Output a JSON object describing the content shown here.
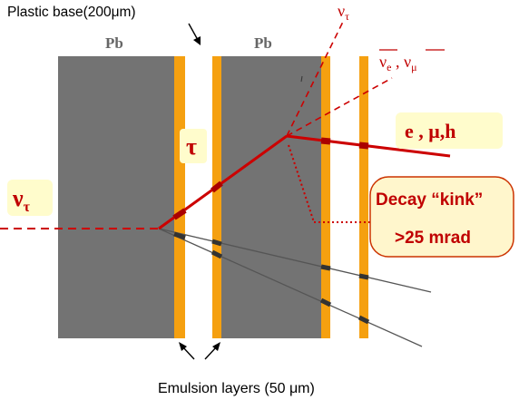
{
  "labels": {
    "plastic_base": "Plastic base(200μm)",
    "pb_left": "Pb",
    "pb_right": "Pb",
    "nu_tau_out_base": "ν",
    "nu_tau_out_sub": "τ",
    "nu_e_base": "ν",
    "nu_e_sub": "e",
    "comma": " , ",
    "nu_mu_base": "ν",
    "nu_mu_sub": "μ",
    "daughters": "e , μ,h",
    "tau": "τ",
    "nu_tau_in_base": "ν",
    "nu_tau_in_sub": "τ",
    "kink_line1": "Decay “kink”",
    "kink_line2": ">25 mrad",
    "emulsion_layers": "Emulsion layers (50 μm)"
  },
  "colors": {
    "lead": "#737373",
    "emulsion": "#f5a010",
    "track_red": "#cc0000",
    "label_red": "#c00000",
    "callout_bg": "#fff6cc",
    "callout_border": "#cc3300",
    "label_bg": "#fffccc",
    "hadron_track": "#404040"
  }
}
